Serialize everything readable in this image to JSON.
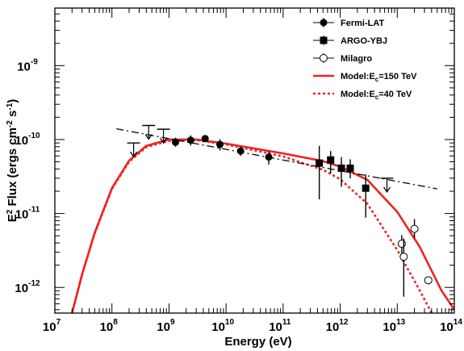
{
  "chart_data": {
    "type": "scatter",
    "xlabel": "Energy (eV)",
    "ylabel": {
      "base": "E",
      "sup1": "2",
      "mid": " Flux (ergs cm",
      "sup2": "-2",
      "mid2": " s",
      "sup3": "-1",
      "end": ")"
    },
    "x_scale": "log",
    "y_scale": "log",
    "xlim": [
      10000000.0,
      100000000000000.0
    ],
    "ylim": [
      4.5e-13,
      6e-09
    ],
    "x_ticks": [
      {
        "value": 10000000.0,
        "base": "10",
        "exp": "7"
      },
      {
        "value": 100000000.0,
        "base": "10",
        "exp": "8"
      },
      {
        "value": 1000000000.0,
        "base": "10",
        "exp": "9"
      },
      {
        "value": 10000000000.0,
        "base": "10",
        "exp": "10"
      },
      {
        "value": 100000000000.0,
        "base": "10",
        "exp": "11"
      },
      {
        "value": 1000000000000.0,
        "base": "10",
        "exp": "12"
      },
      {
        "value": 10000000000000.0,
        "base": "10",
        "exp": "13"
      },
      {
        "value": 100000000000000.0,
        "base": "10",
        "exp": "14"
      }
    ],
    "y_ticks": [
      {
        "value": 1e-12,
        "base": "10",
        "exp": "-12"
      },
      {
        "value": 1e-11,
        "base": "10",
        "exp": "-11"
      },
      {
        "value": 1e-10,
        "base": "10",
        "exp": "-10"
      },
      {
        "value": 1e-09,
        "base": "10",
        "exp": "-9"
      }
    ],
    "legend_position": "top-right",
    "legend": [
      {
        "label": "Fermi-LAT",
        "kind": "marker",
        "marker": "filled-circle"
      },
      {
        "label": "ARGO-YBJ",
        "kind": "marker",
        "marker": "filled-square"
      },
      {
        "label": "Milagro",
        "kind": "marker",
        "marker": "open-circle"
      },
      {
        "label_main": "Model:E",
        "label_sub": "c",
        "label_tail": "=150 TeV",
        "kind": "line",
        "color": "#ee2222",
        "dash": "solid"
      },
      {
        "label_main": "Model:E",
        "label_sub": "c",
        "label_tail": "=40 TeV",
        "kind": "line",
        "color": "#ee2222",
        "dash": "dotted"
      }
    ],
    "series": [
      {
        "name": "Fermi-LAT",
        "marker": "filled-circle",
        "points": [
          {
            "x": 1300000000.0,
            "y": 9.2e-11,
            "ylo": 8e-11,
            "yhi": 1.06e-10
          },
          {
            "x": 2400000000.0,
            "y": 9.8e-11,
            "ylo": 8.3e-11,
            "yhi": 1.14e-10
          },
          {
            "x": 4300000000.0,
            "y": 1.03e-10,
            "ylo": 9.3e-11,
            "yhi": 1.14e-10
          },
          {
            "x": 7800000000.0,
            "y": 8.6e-11,
            "ylo": 7.1e-11,
            "yhi": 1.01e-10
          },
          {
            "x": 18000000000.0,
            "y": 7e-11,
            "ylo": 6e-11,
            "yhi": 8e-11
          },
          {
            "x": 56000000000.0,
            "y": 5.8e-11,
            "ylo": 4.6e-11,
            "yhi": 7e-11
          }
        ],
        "upper_limits": [
          {
            "x": 240000000.0,
            "y": 9e-11
          },
          {
            "x": 440000000.0,
            "y": 1.55e-10
          },
          {
            "x": 800000000.0,
            "y": 1.38e-10
          },
          {
            "x": 6600000000000.0,
            "y": 3e-11
          }
        ]
      },
      {
        "name": "ARGO-YBJ",
        "marker": "filled-square",
        "points": [
          {
            "x": 430000000000.0,
            "y": 4.8e-11,
            "ylo": 1.55e-11,
            "yhi": 8.2e-11
          },
          {
            "x": 680000000000.0,
            "y": 5.3e-11,
            "ylo": 3.5e-11,
            "yhi": 7e-11
          },
          {
            "x": 1050000000000.0,
            "y": 4.1e-11,
            "ylo": 2.3e-11,
            "yhi": 5.8e-11
          },
          {
            "x": 1500000000000.0,
            "y": 4.1e-11,
            "ylo": 3e-11,
            "yhi": 5.4e-11
          },
          {
            "x": 2800000000000.0,
            "y": 2.2e-11,
            "ylo": 8.8e-12,
            "yhi": 3.4e-11
          }
        ]
      },
      {
        "name": "Milagro",
        "marker": "open-circle",
        "points": [
          {
            "x": 12000000000000.0,
            "y": 3.9e-12,
            "ylo": 2.8e-12,
            "yhi": 5.1e-12
          },
          {
            "x": 13000000000000.0,
            "y": 2.6e-12,
            "ylo": 7.5e-13,
            "yhi": 4.6e-12
          },
          {
            "x": 20000000000000.0,
            "y": 6.2e-12,
            "ylo": 4.6e-12,
            "yhi": 8.4e-12
          },
          {
            "x": 35000000000000.0,
            "y": 1.25e-12,
            "ylo": 1.25e-12,
            "yhi": 1.25e-12
          }
        ]
      },
      {
        "name": "Model:Ec=150 TeV",
        "kind": "line",
        "color": "#ee2222",
        "dash": "solid",
        "curve": [
          {
            "x": 20000000.0,
            "y": 4.5e-13
          },
          {
            "x": 30000000.0,
            "y": 1.5e-12
          },
          {
            "x": 50000000.0,
            "y": 5.5e-12
          },
          {
            "x": 100000000.0,
            "y": 2.2e-11
          },
          {
            "x": 200000000.0,
            "y": 5.2e-11
          },
          {
            "x": 400000000.0,
            "y": 8.2e-11
          },
          {
            "x": 1000000000.0,
            "y": 1e-10
          },
          {
            "x": 3000000000.0,
            "y": 1e-10
          },
          {
            "x": 10000000000.0,
            "y": 8.8e-11
          },
          {
            "x": 100000000000.0,
            "y": 6.5e-11
          },
          {
            "x": 500000000000.0,
            "y": 5.1e-11
          },
          {
            "x": 1000000000000.0,
            "y": 4.3e-11
          },
          {
            "x": 3000000000000.0,
            "y": 2.85e-11
          },
          {
            "x": 10000000000000.0,
            "y": 1.05e-11
          },
          {
            "x": 25000000000000.0,
            "y": 3.5e-12
          },
          {
            "x": 60000000000000.0,
            "y": 9e-13
          },
          {
            "x": 100000000000000.0,
            "y": 5e-13
          }
        ]
      },
      {
        "name": "Model:Ec=40 TeV",
        "kind": "line",
        "color": "#ee2222",
        "dash": "dotted",
        "curve": [
          {
            "x": 20000000.0,
            "y": 4.5e-13
          },
          {
            "x": 30000000.0,
            "y": 1.5e-12
          },
          {
            "x": 50000000.0,
            "y": 5.4e-12
          },
          {
            "x": 100000000.0,
            "y": 2.15e-11
          },
          {
            "x": 200000000.0,
            "y": 5e-11
          },
          {
            "x": 400000000.0,
            "y": 7.9e-11
          },
          {
            "x": 1000000000.0,
            "y": 9.6e-11
          },
          {
            "x": 3000000000.0,
            "y": 9.8e-11
          },
          {
            "x": 10000000000.0,
            "y": 8.6e-11
          },
          {
            "x": 100000000000.0,
            "y": 5.9e-11
          },
          {
            "x": 500000000000.0,
            "y": 3.9e-11
          },
          {
            "x": 1000000000000.0,
            "y": 2.9e-11
          },
          {
            "x": 3000000000000.0,
            "y": 1.35e-11
          },
          {
            "x": 10000000000000.0,
            "y": 3.2e-12
          },
          {
            "x": 25000000000000.0,
            "y": 9e-13
          },
          {
            "x": 40000000000000.0,
            "y": 4.5e-13
          }
        ]
      },
      {
        "name": "power-law fit",
        "kind": "line",
        "color": "#000000",
        "dash": "dash-dot",
        "curve": [
          {
            "x": 120000000.0,
            "y": 1.4e-10
          },
          {
            "x": 50000000000000.0,
            "y": 2.15e-11
          }
        ]
      }
    ]
  }
}
